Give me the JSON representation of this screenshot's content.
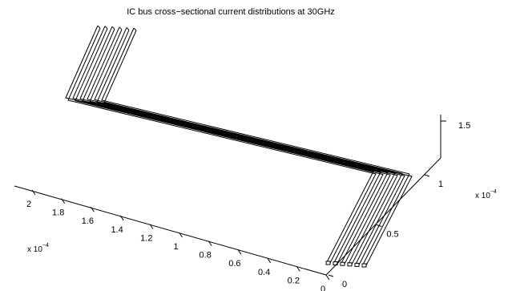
{
  "chart_data": {
    "type": "3d-surface",
    "title": "IC bus cross−sectional current distributions at 30GHz",
    "left_axis": {
      "ticks": [
        0,
        0.2,
        0.4,
        0.6,
        0.8,
        1,
        1.2,
        1.4,
        1.6,
        1.8,
        2
      ],
      "tick_labels": [
        "0",
        "0.2",
        "0.4",
        "0.6",
        "0.8",
        "1",
        "1.2",
        "1.4",
        "1.6",
        "1.8",
        "2"
      ],
      "scale_label": "x 10",
      "scale_exponent": "−4"
    },
    "right_axis": {
      "ticks": [
        0,
        0.5,
        1
      ],
      "tick_labels": [
        "0",
        "0.5",
        "1"
      ],
      "scale_label": "x 10",
      "scale_exponent": "−4"
    },
    "vertical_axis": {
      "ticks": [
        1.5
      ],
      "tick_labels": [
        "1.5"
      ]
    },
    "bus": {
      "conductor_count": 6,
      "shape": "Z-shaped bus of parallel conductors",
      "line_color": "#000000",
      "fill_color": "#ffffff"
    },
    "grid": false,
    "legend": "none"
  }
}
